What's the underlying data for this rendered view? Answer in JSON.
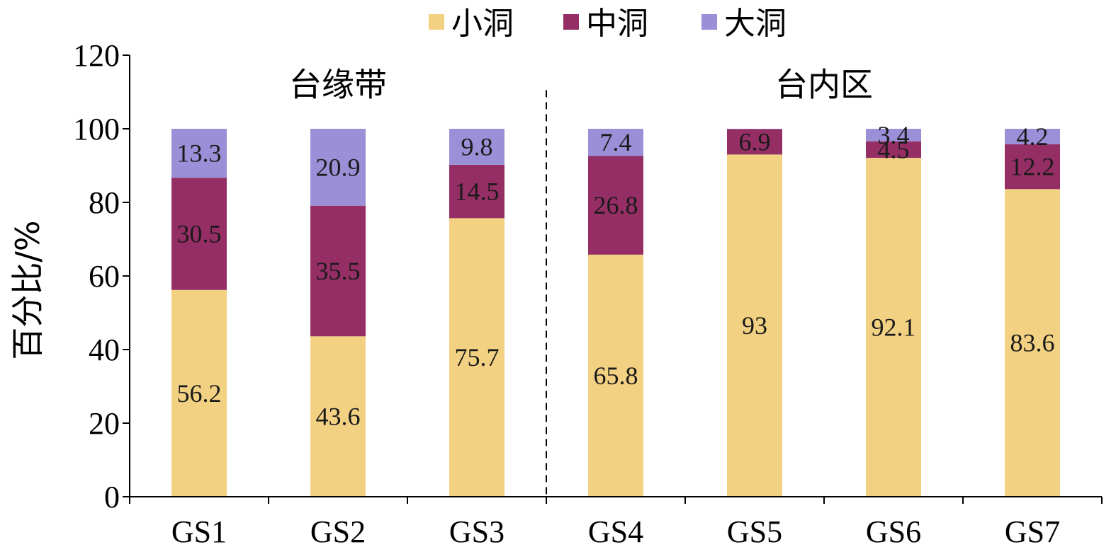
{
  "chart_data": {
    "type": "bar",
    "stacked": true,
    "title": "",
    "xlabel": "",
    "ylabel": "百分比/%",
    "ylim": [
      0,
      120
    ],
    "yticks": [
      0,
      20,
      40,
      60,
      80,
      100,
      120
    ],
    "grid": false,
    "legend_position": "top",
    "categories": [
      "GS1",
      "GS2",
      "GS3",
      "GS4",
      "GS5",
      "GS6",
      "GS7"
    ],
    "groups": [
      {
        "label": "台缘带",
        "categories": [
          "GS1",
          "GS2",
          "GS3"
        ]
      },
      {
        "label": "台内区",
        "categories": [
          "GS4",
          "GS5",
          "GS6",
          "GS7"
        ]
      }
    ],
    "series": [
      {
        "name": "小洞",
        "color": "#f2d183",
        "values": [
          56.2,
          43.6,
          75.7,
          65.8,
          93,
          92.1,
          83.6
        ]
      },
      {
        "name": "中洞",
        "color": "#962e66",
        "values": [
          30.5,
          35.5,
          14.5,
          26.8,
          6.9,
          4.5,
          12.2
        ]
      },
      {
        "name": "大洞",
        "color": "#9b90d8",
        "values": [
          13.3,
          20.9,
          9.8,
          7.4,
          0.1,
          3.4,
          4.2
        ]
      }
    ],
    "data_labels": [
      [
        "56.2",
        "43.6",
        "75.7",
        "65.8",
        "93",
        "92.1",
        "83.6"
      ],
      [
        "30.5",
        "35.5",
        "14.5",
        "26.8",
        "6.9",
        "4.5",
        "12.2"
      ],
      [
        "13.3",
        "20.9",
        "9.8",
        "7.4",
        "",
        "3.4",
        "4.2"
      ]
    ]
  }
}
